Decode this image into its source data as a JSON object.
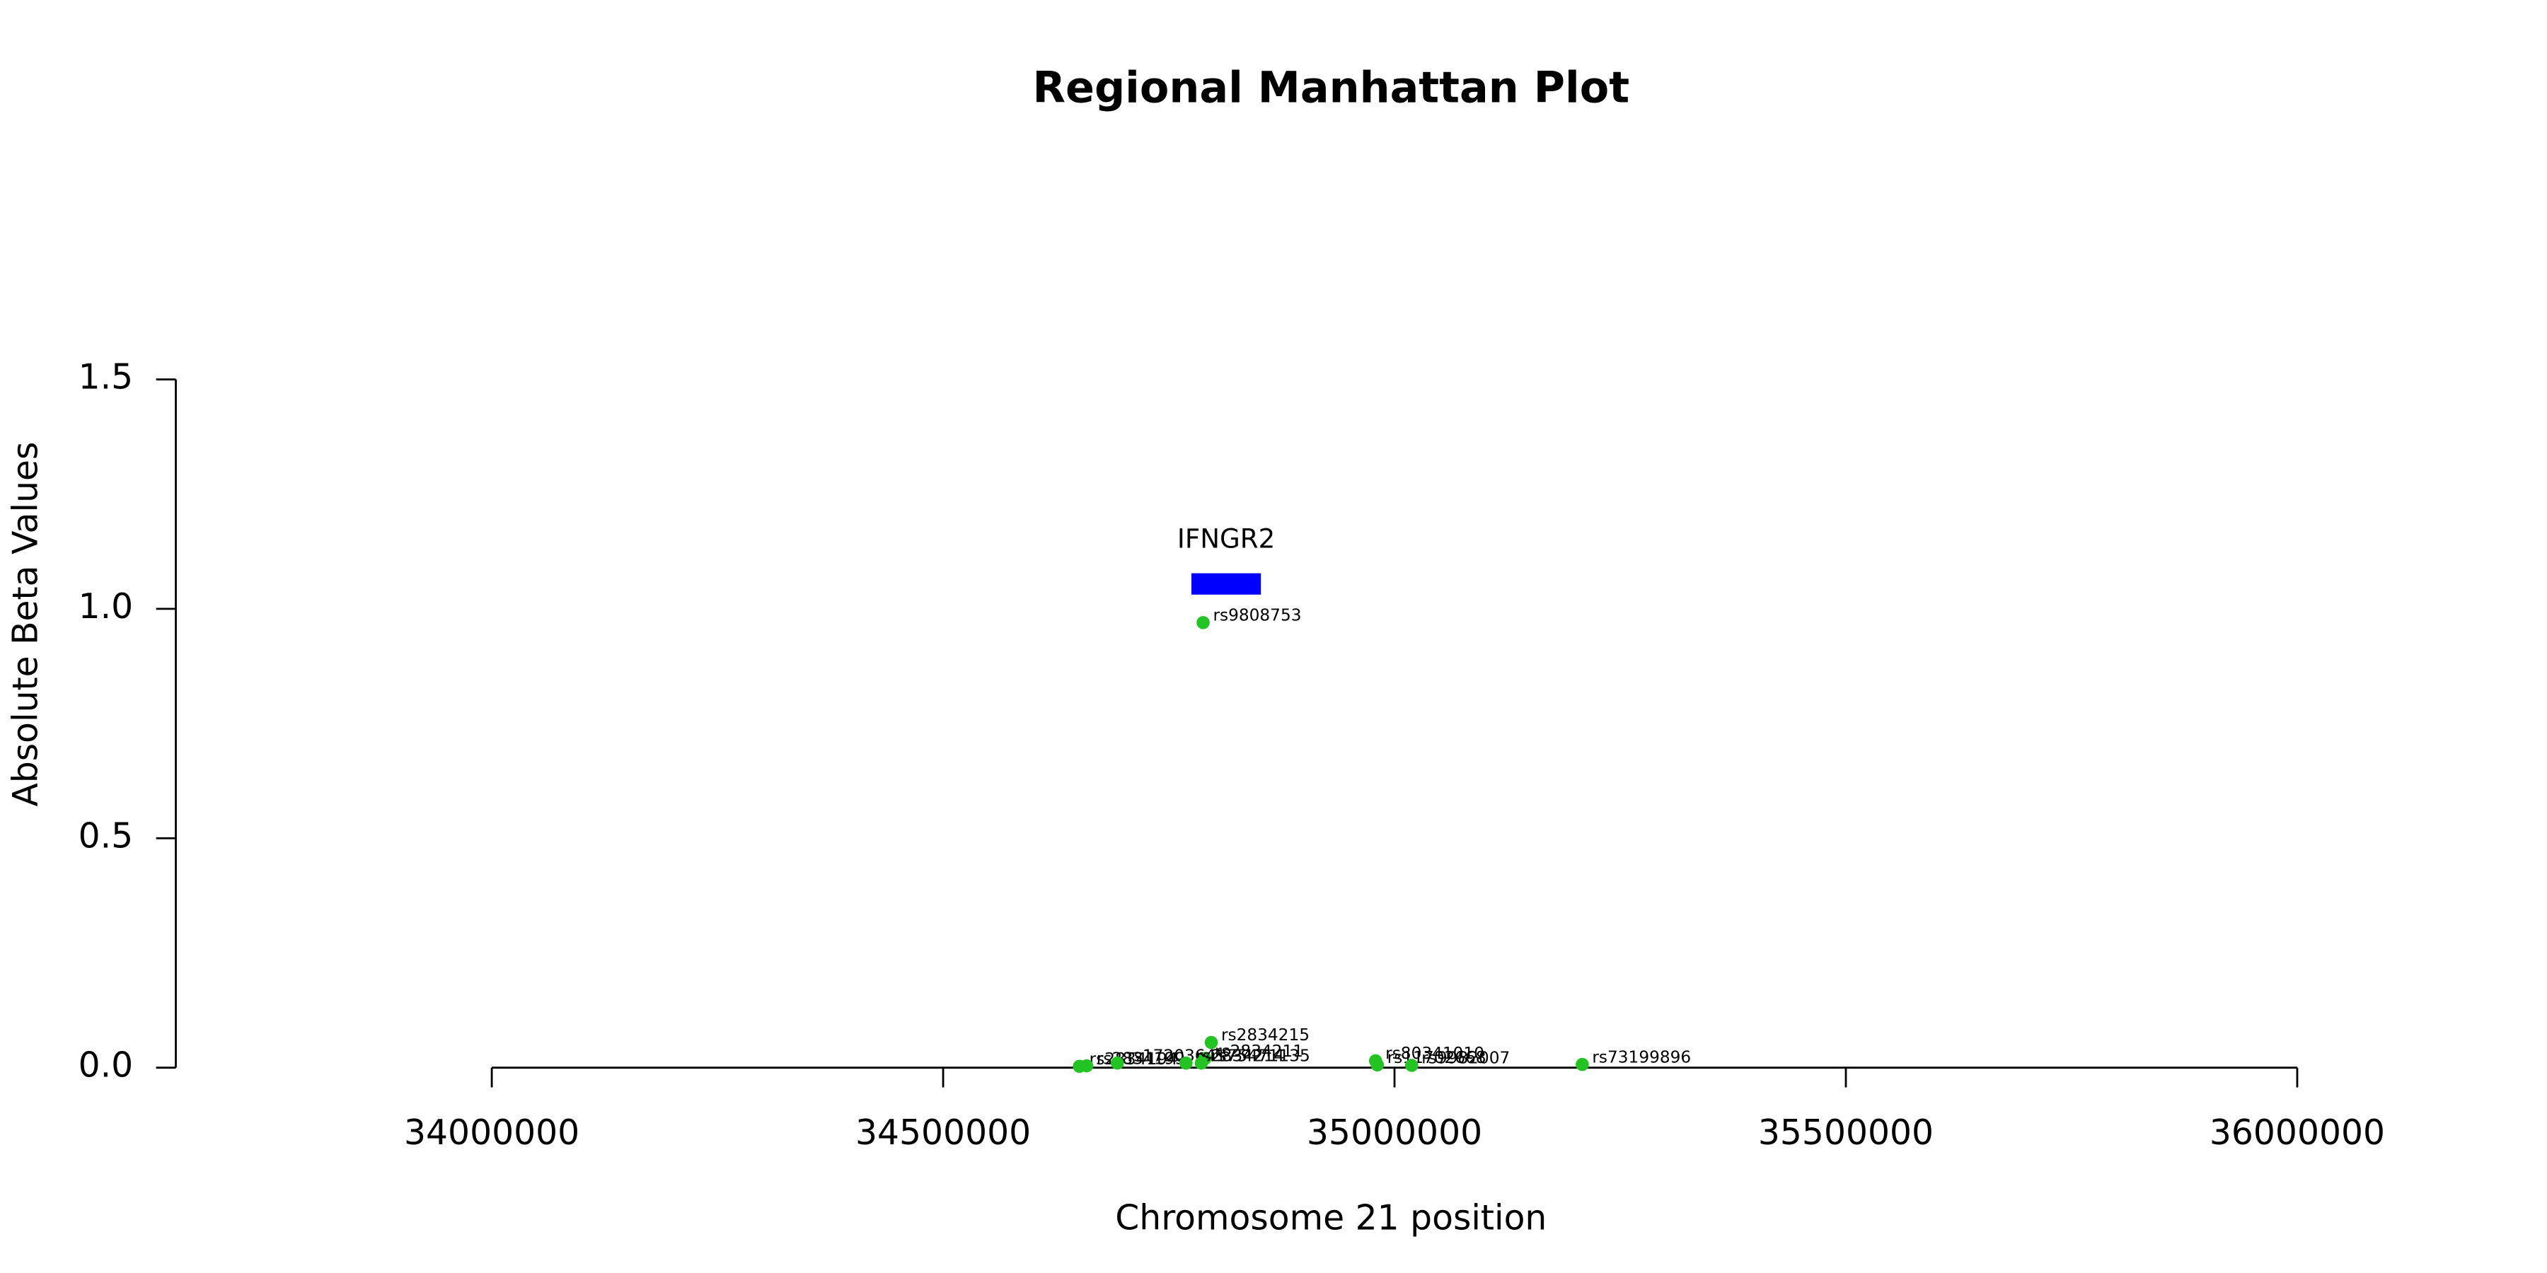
{
  "chart_data": {
    "type": "scatter",
    "title": "Regional Manhattan Plot",
    "x_label": "Chromosome 21 position",
    "y_label": "Absolute Beta Values",
    "xlim": [
      33650000,
      36000000
    ],
    "ylim": [
      0,
      1.5
    ],
    "xticks": [
      34000000,
      34500000,
      35000000,
      35500000,
      36000000
    ],
    "yticks": [
      {
        "value": 0,
        "label": "0.0"
      },
      0.5,
      {
        "value": 1,
        "label": "1.0"
      },
      1.5
    ],
    "series": [
      {
        "color": "#22c322",
        "x": [
          34788000,
          34797000,
          34790000,
          34979000,
          34981000,
          35019000,
          35208000,
          34651000,
          34659000,
          34693000,
          34769000,
          34786000
        ],
        "values": [
          0.97,
          0.055,
          0.02,
          0.015,
          0.006,
          0.005,
          0.007,
          0.003,
          0.004,
          0.01,
          0.01,
          0.01
        ],
        "labels": [
          "rs9808753",
          "rs2834215",
          "rs2834211",
          "rs80341010",
          "rs11702668",
          "rs9982007",
          "rs73199896",
          "rs2834194",
          "rs2834199",
          "rs17203641",
          "rs2834214",
          "rs75471135"
        ]
      }
    ],
    "gene": {
      "label": "IFNGR2",
      "start": 34775000,
      "end": 34852000,
      "color": "#0000ff"
    }
  }
}
